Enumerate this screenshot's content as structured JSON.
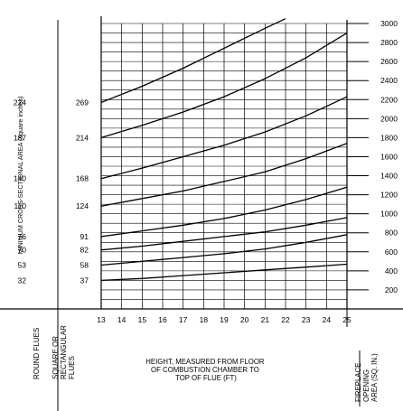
{
  "chart_data": {
    "type": "line",
    "x_ticks": [
      13,
      14,
      15,
      16,
      17,
      18,
      19,
      20,
      21,
      22,
      23,
      24,
      25
    ],
    "xlim": [
      13,
      25
    ],
    "ylim": [
      0,
      3000
    ],
    "right_axis_ticks": [
      200,
      400,
      600,
      800,
      1000,
      1200,
      1400,
      1600,
      1800,
      2000,
      2200,
      2400,
      2600,
      2800,
      3000
    ],
    "round_flue_labels": [
      "224",
      "187",
      "140",
      "110",
      "76",
      "70",
      "53",
      "32"
    ],
    "square_flue_labels": [
      "269",
      "214",
      "168",
      "124",
      "91",
      "82",
      "58",
      "37"
    ],
    "ylabel_left": "MINIMUM CROSS-SECTIONAL AREA (square inches)",
    "xlabel": [
      "HEIGHT, MEASURED FROM FLOOR",
      "OF COMBUSTION CHAMBER TO",
      "TOP OF FLUE (FT)"
    ],
    "col_round": [
      "ROUND FLUES"
    ],
    "col_square": [
      "SQUARE OR",
      "RECTANGULAR",
      "FLUES"
    ],
    "col_fireplace": [
      "FIREPLACE",
      "OPENING",
      "AREA (SQ. IN.)"
    ],
    "grid": true,
    "series": [
      {
        "round": "32",
        "square": "37",
        "x": [
          13,
          15,
          17,
          19,
          21,
          23,
          25
        ],
        "y": [
          300,
          320,
          350,
          380,
          410,
          440,
          470
        ]
      },
      {
        "round": "53",
        "square": "58",
        "x": [
          13,
          15,
          17,
          19,
          21,
          23,
          25
        ],
        "y": [
          460,
          500,
          540,
          580,
          630,
          700,
          780
        ]
      },
      {
        "round": "70",
        "square": "82",
        "x": [
          13,
          15,
          17,
          19,
          21,
          23,
          25
        ],
        "y": [
          620,
          660,
          710,
          760,
          810,
          880,
          960
        ]
      },
      {
        "round": "76",
        "square": "91",
        "x": [
          13,
          15,
          17,
          19,
          21,
          23,
          25
        ],
        "y": [
          760,
          820,
          880,
          950,
          1040,
          1150,
          1280
        ]
      },
      {
        "round": "110",
        "square": "124",
        "x": [
          13,
          15,
          17,
          19,
          21,
          23,
          25
        ],
        "y": [
          1080,
          1160,
          1240,
          1340,
          1440,
          1580,
          1740
        ]
      },
      {
        "round": "140",
        "square": "168",
        "x": [
          13,
          15,
          17,
          19,
          21,
          23,
          25
        ],
        "y": [
          1370,
          1480,
          1600,
          1720,
          1860,
          2030,
          2230
        ]
      },
      {
        "round": "187",
        "square": "214",
        "x": [
          13,
          15,
          17,
          19,
          21,
          23,
          25
        ],
        "y": [
          1800,
          1930,
          2070,
          2230,
          2420,
          2640,
          2900
        ]
      },
      {
        "round": "224",
        "square": "269",
        "x": [
          13,
          15,
          17,
          19,
          21,
          22
        ],
        "y": [
          2170,
          2340,
          2530,
          2740,
          2950,
          3050
        ]
      }
    ]
  }
}
